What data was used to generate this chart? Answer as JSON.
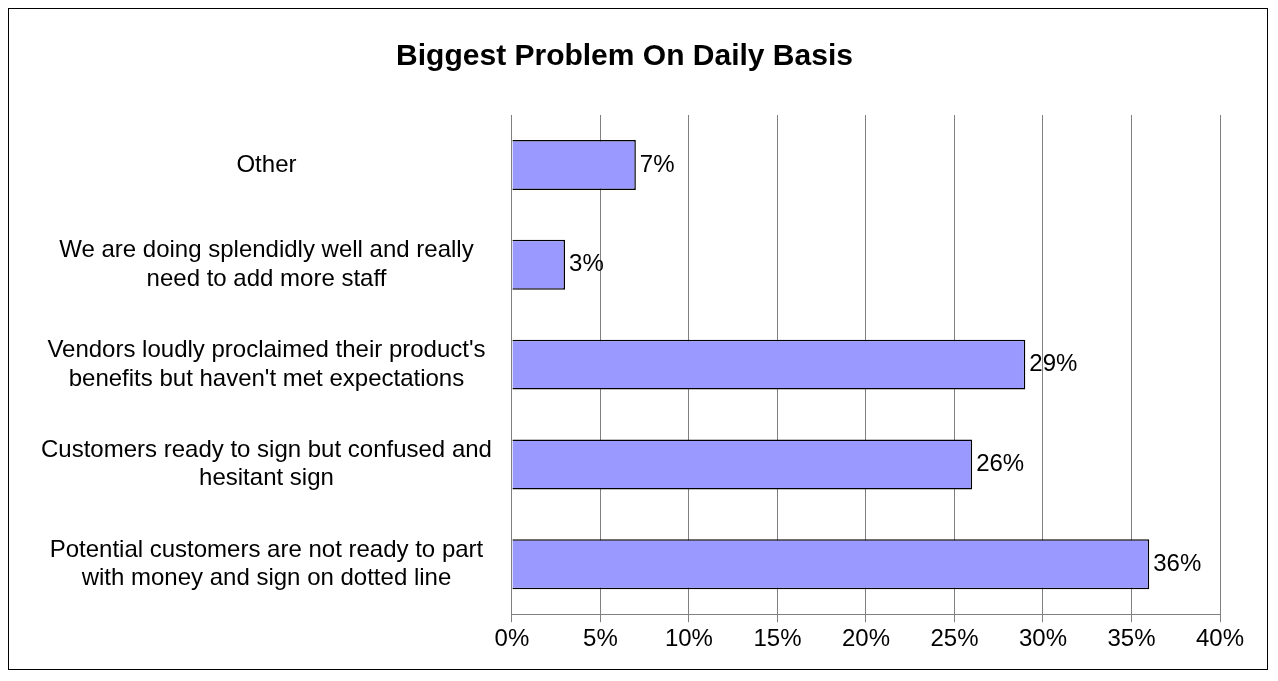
{
  "chart_data": {
    "type": "bar",
    "orientation": "horizontal",
    "title": "Biggest Problem On Daily Basis",
    "categories": [
      "Other",
      "We are doing splendidly well and really need to add more staff",
      "Vendors loudly proclaimed their product's benefits but haven't met expectations",
      "Customers ready to sign but confused and hesitant sign",
      "Potential customers are not ready to part with money and sign on dotted line"
    ],
    "values": [
      7,
      3,
      29,
      26,
      36
    ],
    "value_labels": [
      "7%",
      "3%",
      "29%",
      "26%",
      "36%"
    ],
    "color": "#9999ff",
    "xlim": [
      0,
      40
    ],
    "xticks": [
      {
        "value": 0,
        "label": "0%"
      },
      {
        "value": 5,
        "label": "5%"
      },
      {
        "value": 10,
        "label": "10%"
      },
      {
        "value": 15,
        "label": "15%"
      },
      {
        "value": 20,
        "label": "20%"
      },
      {
        "value": 25,
        "label": "25%"
      },
      {
        "value": 30,
        "label": "30%"
      },
      {
        "value": 35,
        "label": "35%"
      },
      {
        "value": 40,
        "label": "40%"
      }
    ],
    "grid": "x",
    "legend": false
  }
}
